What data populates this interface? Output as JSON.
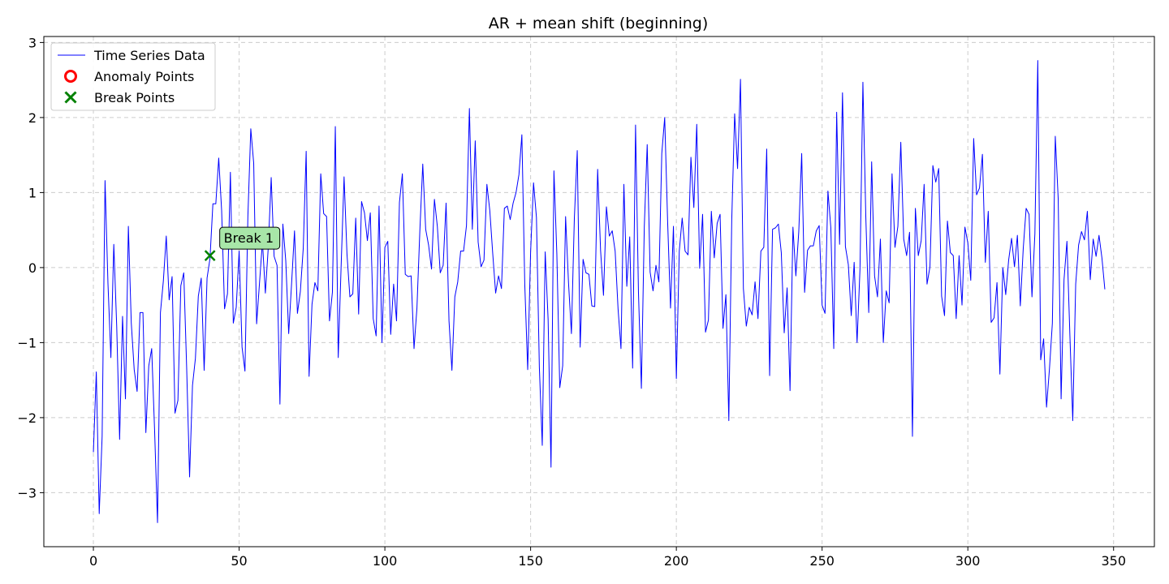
{
  "chart_data": {
    "type": "line",
    "title": "AR + mean shift (beginning)",
    "xlabel": "",
    "ylabel": "",
    "xlim": [
      -17,
      364
    ],
    "ylim": [
      -3.72,
      3.08
    ],
    "xticks": [
      0,
      50,
      100,
      150,
      200,
      250,
      300,
      350
    ],
    "yticks": [
      -3,
      -2,
      -1,
      0,
      1,
      2,
      3
    ],
    "grid": true,
    "legend_position": "top-left",
    "series": [
      {
        "name": "Time Series Data",
        "color": "#0000ff",
        "x_start": 0,
        "values": [
          -2.46,
          -1.39,
          -3.28,
          -2.25,
          1.16,
          -0.21,
          -1.2,
          0.31,
          -0.78,
          -2.29,
          -0.65,
          -1.75,
          0.55,
          -0.74,
          -1.36,
          -1.65,
          -0.6,
          -0.6,
          -2.2,
          -1.31,
          -1.08,
          -2.17,
          -3.4,
          -0.6,
          -0.18,
          0.42,
          -0.43,
          -0.12,
          -1.94,
          -1.77,
          -0.24,
          -0.07,
          -1.34,
          -2.79,
          -1.57,
          -1.21,
          -0.38,
          -0.14,
          -1.37,
          -0.14,
          0.12,
          0.85,
          0.85,
          1.46,
          0.76,
          -0.55,
          -0.35,
          1.27,
          -0.74,
          -0.53,
          0.22,
          -1.06,
          -1.38,
          0.68,
          1.85,
          1.39,
          -0.75,
          -0.2,
          0.35,
          -0.34,
          0.27,
          1.2,
          0.15,
          0.03,
          -1.82,
          0.58,
          0.09,
          -0.88,
          -0.21,
          0.49,
          -0.61,
          -0.32,
          0.26,
          1.55,
          -1.45,
          -0.49,
          -0.2,
          -0.31,
          1.25,
          0.72,
          0.68,
          -0.71,
          -0.33,
          1.88,
          -1.2,
          0.03,
          1.21,
          0.18,
          -0.39,
          -0.35,
          0.66,
          -0.62,
          0.88,
          0.73,
          0.36,
          0.73,
          -0.68,
          -0.91,
          0.82,
          -1.0,
          0.27,
          0.35,
          -0.89,
          -0.22,
          -0.71,
          0.87,
          1.25,
          -0.09,
          -0.12,
          -0.11,
          -1.08,
          -0.54,
          0.49,
          1.38,
          0.51,
          0.3,
          -0.02,
          0.91,
          0.55,
          -0.07,
          0.03,
          0.86,
          -0.71,
          -1.37,
          -0.39,
          -0.19,
          0.22,
          0.22,
          0.56,
          2.12,
          0.51,
          1.69,
          0.34,
          0.01,
          0.1,
          1.11,
          0.76,
          0.19,
          -0.34,
          -0.11,
          -0.28,
          0.79,
          0.82,
          0.64,
          0.86,
          1.0,
          1.24,
          1.77,
          -0.23,
          -1.36,
          0.21,
          1.13,
          0.67,
          -1.33,
          -2.37,
          0.21,
          -0.69,
          -2.66,
          1.29,
          0.18,
          -1.6,
          -1.31,
          0.68,
          -0.2,
          -0.88,
          0.65,
          1.56,
          -1.06,
          0.11,
          -0.07,
          -0.09,
          -0.51,
          -0.52,
          1.31,
          0.23,
          -0.37,
          0.81,
          0.42,
          0.49,
          0.22,
          -0.55,
          -1.08,
          1.11,
          -0.25,
          0.41,
          -1.34,
          1.9,
          -0.33,
          -1.61,
          0.54,
          1.64,
          -0.06,
          -0.31,
          0.03,
          -0.19,
          1.52,
          2.0,
          0.62,
          -0.54,
          0.55,
          -1.48,
          0.22,
          0.66,
          0.22,
          0.17,
          1.47,
          0.8,
          1.91,
          -0.01,
          0.71,
          -0.86,
          -0.7,
          0.75,
          0.13,
          0.59,
          0.71,
          -0.81,
          -0.36,
          -2.04,
          0.63,
          2.05,
          1.32,
          2.51,
          -0.28,
          -0.78,
          -0.53,
          -0.63,
          -0.19,
          -0.68,
          0.22,
          0.27,
          1.58,
          -1.44,
          0.51,
          0.53,
          0.58,
          0.2,
          -0.87,
          -0.27,
          -1.64,
          0.54,
          -0.11,
          0.48,
          1.52,
          -0.33,
          0.23,
          0.29,
          0.29,
          0.49,
          0.56,
          -0.5,
          -0.61,
          1.02,
          0.53,
          -1.08,
          2.07,
          0.31,
          2.33,
          0.28,
          0.04,
          -0.64,
          0.07,
          -1.0,
          -0.02,
          2.47,
          0.67,
          -0.6,
          1.41,
          -0.11,
          -0.39,
          0.38,
          -1.0,
          -0.31,
          -0.47,
          1.25,
          0.27,
          0.55,
          1.67,
          0.38,
          0.16,
          0.47,
          -2.25,
          0.79,
          0.16,
          0.36,
          1.11,
          -0.22,
          0.01,
          1.36,
          1.14,
          1.32,
          -0.38,
          -0.64,
          0.62,
          0.2,
          0.16,
          -0.68,
          0.16,
          -0.5,
          0.54,
          0.33,
          -0.17,
          1.72,
          0.97,
          1.06,
          1.51,
          0.07,
          0.75,
          -0.73,
          -0.67,
          -0.2,
          -1.42,
          0.0,
          -0.36,
          0.1,
          0.39,
          0.01,
          0.43,
          -0.51,
          0.25,
          0.79,
          0.71,
          -0.39,
          0.45,
          2.76,
          -1.23,
          -0.95,
          -1.86,
          -1.35,
          -0.74,
          1.75,
          0.92,
          -1.75,
          -0.16,
          0.35,
          -0.89,
          -2.04,
          -0.22,
          0.3,
          0.48,
          0.37,
          0.75,
          -0.16,
          0.38,
          0.15,
          0.43,
          0.13,
          -0.29
        ]
      },
      {
        "name": "Anomaly Points",
        "color": "#ff0000",
        "points": []
      },
      {
        "name": "Break Points",
        "color": "#008000",
        "points": [
          [
            40,
            0.16
          ]
        ]
      }
    ],
    "annotations": [
      {
        "text": "Break 1",
        "x": 40,
        "y": 0.16,
        "bg": "#a8e6a8"
      }
    ]
  }
}
